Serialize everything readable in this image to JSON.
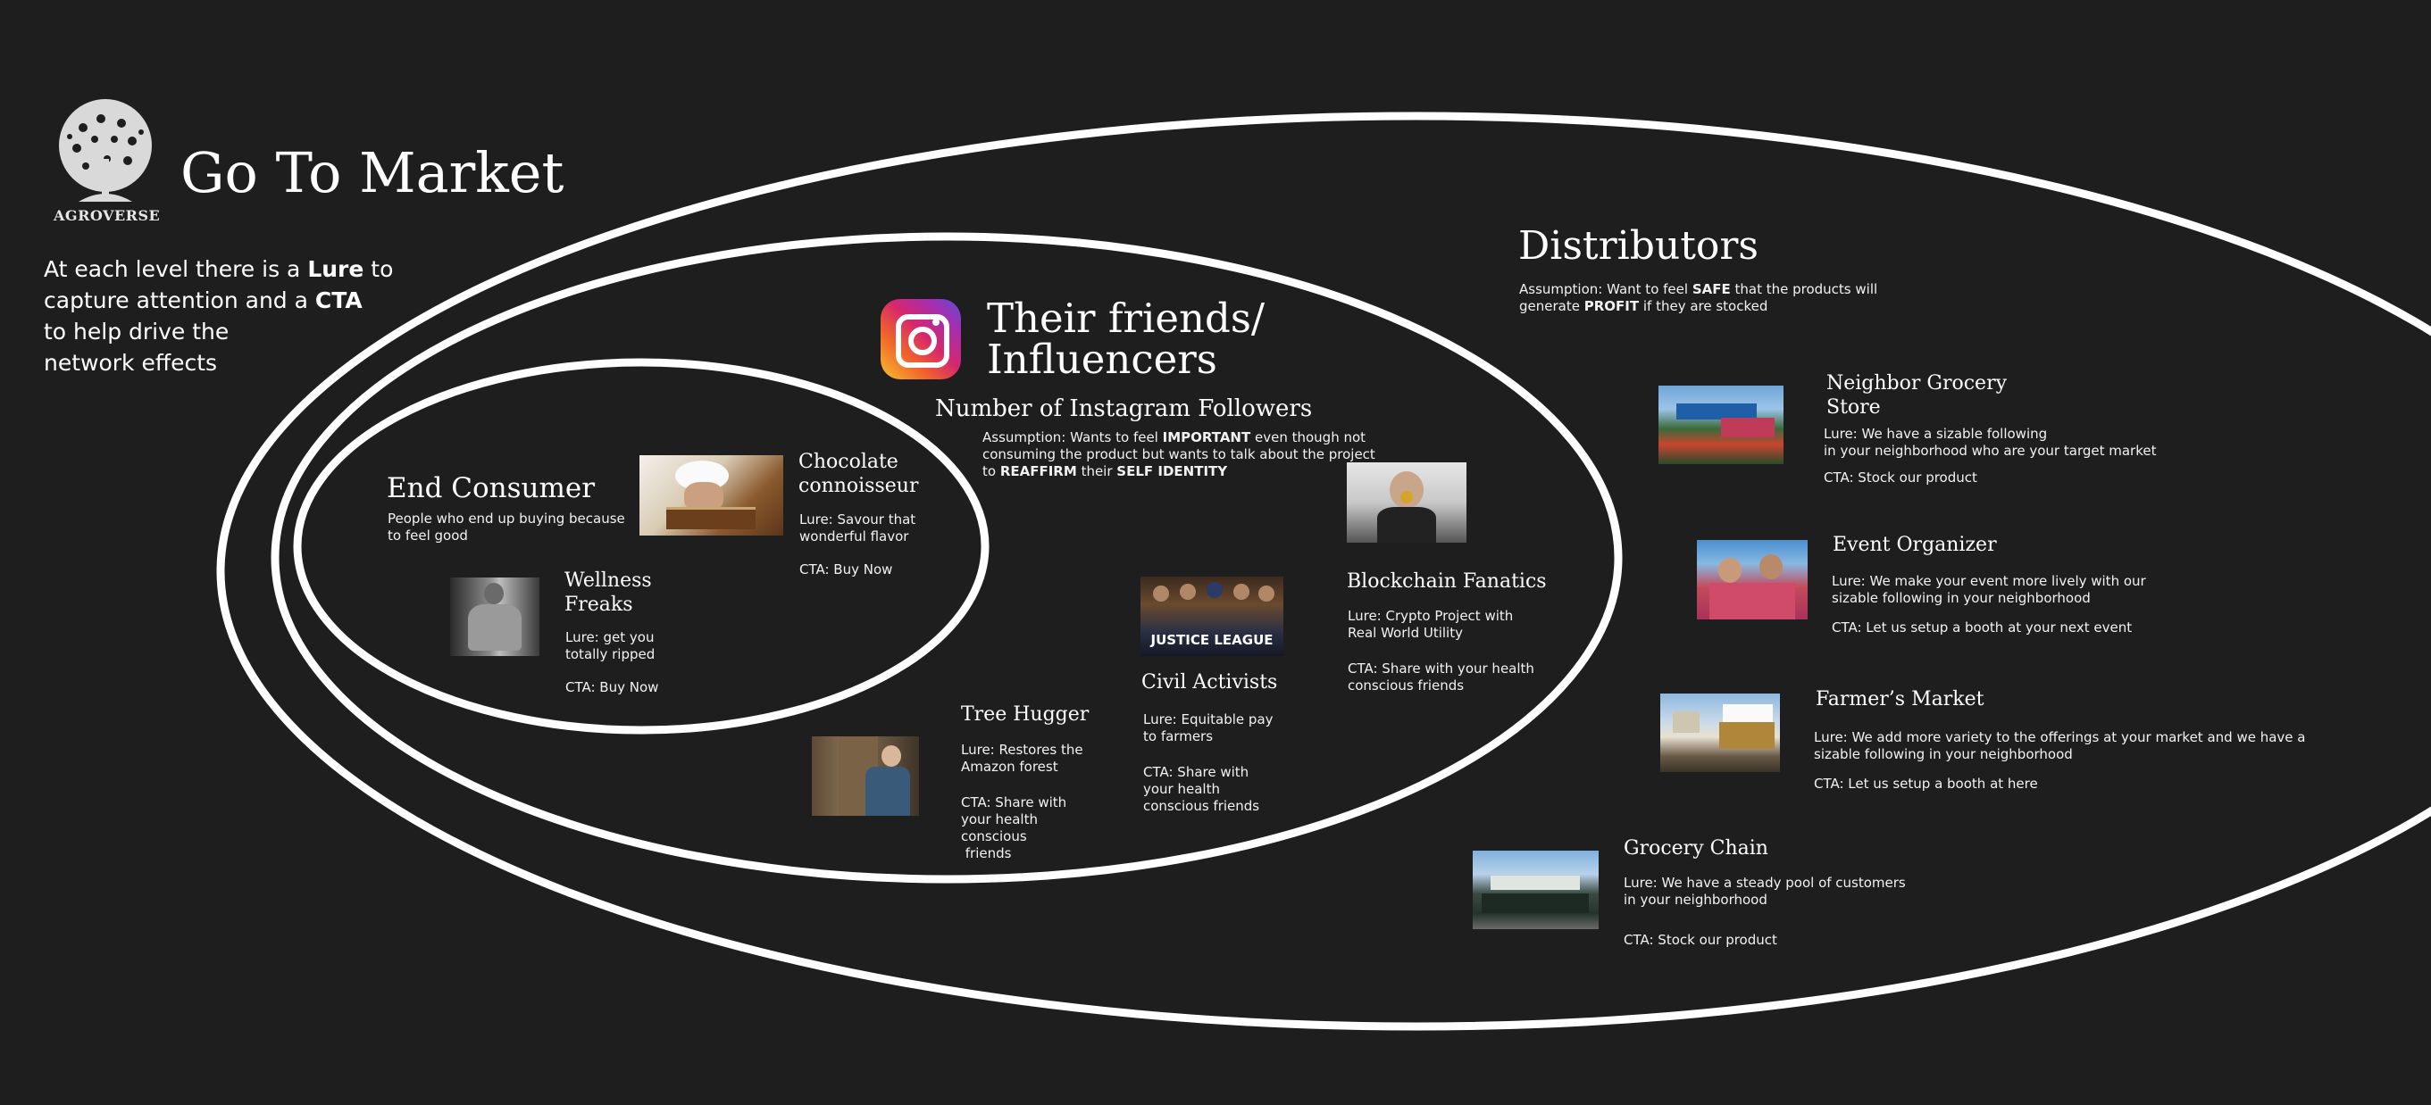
{
  "logo": {
    "text": "AGROVERSE"
  },
  "title": "Go To Market",
  "intro": {
    "l1a": "At each level there is a ",
    "l1b": "Lure",
    "l1c": " to",
    "l2a": "capture attention and a ",
    "l2b": "CTA",
    "l3": "to help drive the",
    "l4": "network effects"
  },
  "end_consumer": {
    "title": "End Consumer",
    "desc1": "People who end up buying because",
    "desc2": "to feel good",
    "chocolate": {
      "title1": "Chocolate",
      "title2": "connoisseur",
      "lure1": "Lure: Savour that",
      "lure2": "wonderful flavor",
      "cta": "CTA: Buy Now"
    },
    "wellness": {
      "title1": "Wellness",
      "title2": "Freaks",
      "lure1": "Lure: get you",
      "lure2": "totally ripped",
      "cta": "CTA: Buy Now"
    }
  },
  "influencers": {
    "title1": "Their friends/",
    "title2": "Influencers",
    "subtitle": "Number of Instagram Followers",
    "assump1a": "Assumption: Wants to feel ",
    "assump1b": "IMPORTANT",
    "assump1c": " even though not",
    "assump2": "consuming the product but wants to talk about the project",
    "assump3a": "to ",
    "assump3b": "REAFFIRM",
    "assump3c": " their ",
    "assump3d": "SELF IDENTITY",
    "blockchain": {
      "title": "Blockchain Fanatics",
      "lure1": "Lure: Crypto Project with",
      "lure2": "Real World Utility",
      "cta1": "CTA: Share with your health",
      "cta2": "conscious  friends"
    },
    "civil": {
      "title": "Civil Activists",
      "lure1": "Lure: Equitable  pay",
      "lure2": "to farmers",
      "cta1": "CTA: Share with",
      "cta2": "your health",
      "cta3": "conscious friends"
    },
    "tree": {
      "title": "Tree Hugger",
      "lure1": "Lure: Restores the",
      "lure2": "Amazon forest",
      "cta1": "CTA: Share with",
      "cta2": "your health",
      "cta3": "conscious",
      "cta4": " friends"
    },
    "poster_text": "JUSTICE LEAGUE"
  },
  "distributors": {
    "title": "Distributors",
    "assump1a": "Assumption: Want to feel ",
    "assump1b": "SAFE",
    "assump1c": " that the products will",
    "assump2a": "generate ",
    "assump2b": "PROFIT",
    "assump2c": " if they are stocked",
    "neighbor": {
      "title1": "Neighbor Grocery",
      "title2": "Store",
      "lure1": "Lure: We have a sizable following",
      "lure2": "in your neighborhood who are your target market",
      "cta": "CTA: Stock our product"
    },
    "event": {
      "title": "Event Organizer",
      "lure1": "Lure: We make your event more lively with our",
      "lure2": "sizable following  in your neighborhood",
      "cta": "CTA: Let us setup a booth at your next event"
    },
    "farmers": {
      "title": "Farmer’s Market",
      "lure1": "Lure: We add more variety to the offerings at your market and we have a",
      "lure2": "sizable following  in your neighborhood",
      "cta": "CTA: Let us setup a booth at here"
    },
    "grocery_chain": {
      "title": "Grocery Chain",
      "lure1": "Lure: We have a steady pool of customers",
      "lure2": "in your neighborhood",
      "cta": "CTA: Stock our product"
    }
  },
  "colors": {
    "background": "#1e1e1e",
    "ellipse": "#ffffff",
    "text": "#ffffff"
  },
  "icons": [
    "agroverse-tree-logo",
    "instagram-icon"
  ]
}
